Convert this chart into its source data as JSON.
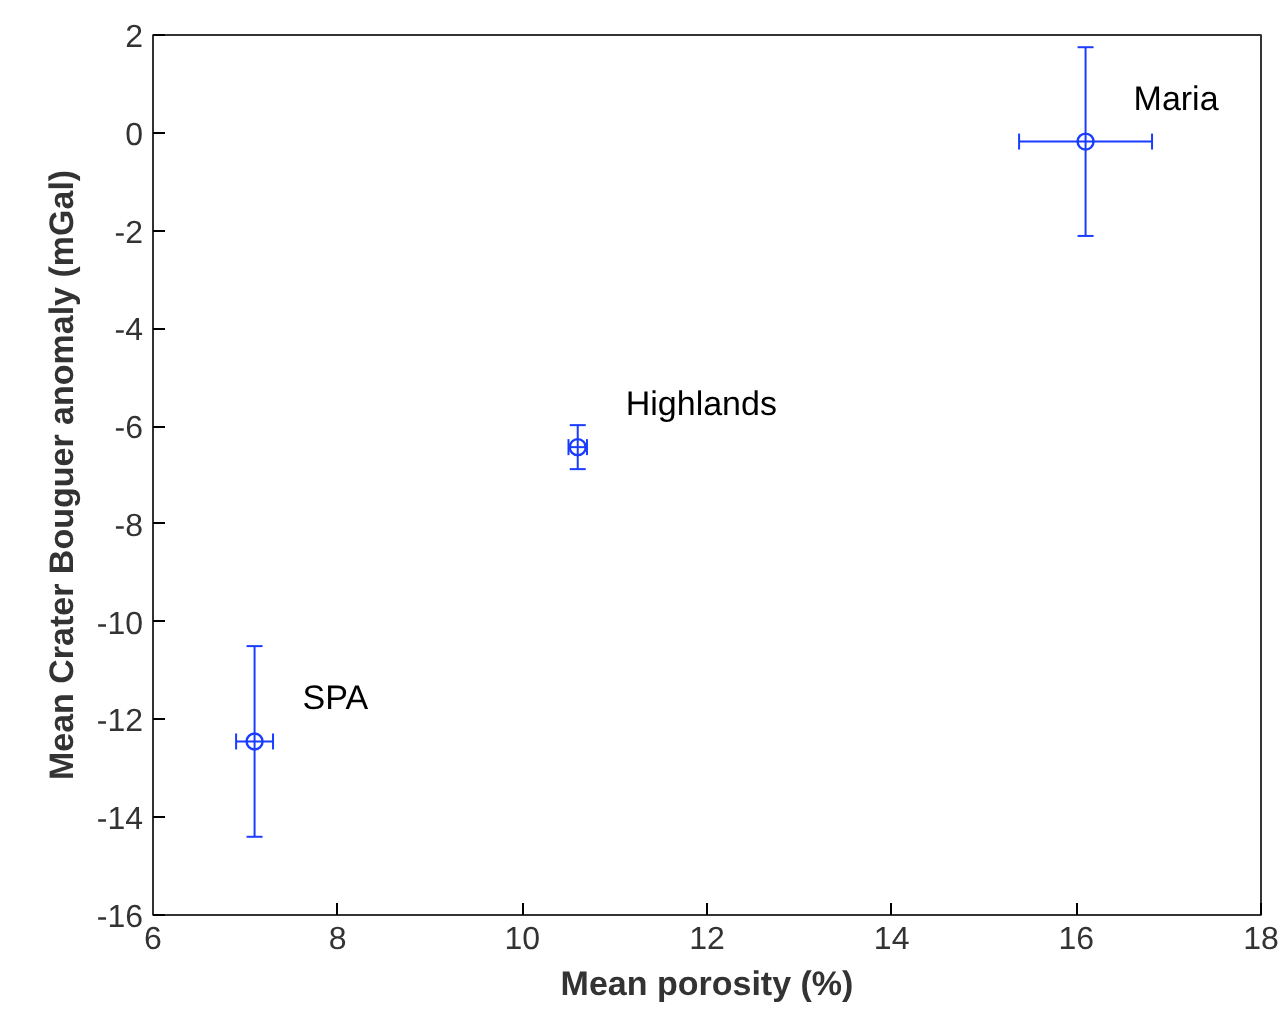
{
  "chart_data": {
    "type": "scatter",
    "xlabel": "Mean porosity (%)",
    "ylabel": "Mean Crater Bouguer anomaly (mGal)",
    "x": [
      7.1,
      10.6,
      16.1
    ],
    "series": [
      {
        "color": "#1a3cff",
        "values": [
          -12.45,
          -6.43,
          -0.18
        ],
        "errors": [
          1.95,
          0.45,
          1.93
        ],
        "xerrors": [
          0.2,
          0.1,
          0.72
        ]
      }
    ],
    "annotations": [
      {
        "text": "SPA",
        "x": 7.1,
        "y": -12.45
      },
      {
        "text": "Highlands",
        "x": 10.6,
        "y": -6.43
      },
      {
        "text": "Maria",
        "x": 16.1,
        "y": -0.18
      }
    ],
    "xlim": [
      6,
      18
    ],
    "xticks": [
      6,
      8,
      10,
      12,
      14,
      16,
      18
    ],
    "ylim": [
      -16,
      2
    ],
    "yticks": [
      -16,
      -14,
      -12,
      -10,
      -8,
      -6,
      -4,
      -2,
      0,
      2
    ],
    "grid": false,
    "marker": "circle"
  }
}
